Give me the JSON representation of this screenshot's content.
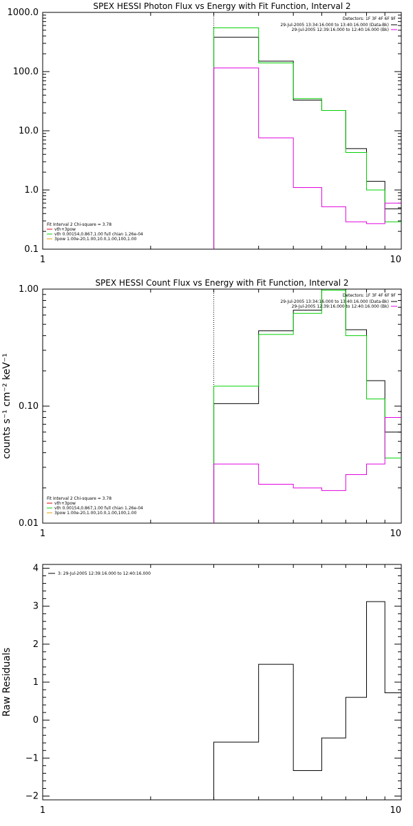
{
  "chart_data": [
    {
      "type": "line",
      "title": "SPEX HESSI Photon Flux vs Energy with Fit Function, Interval 2",
      "xscale": "log",
      "yscale": "log",
      "xlim": [
        1,
        10
      ],
      "ylim": [
        0.1,
        1000
      ],
      "xticklabels": [
        "1",
        "10"
      ],
      "yticks": [
        0.1,
        1,
        10,
        100,
        1000
      ],
      "yticklabels": [
        "0.1",
        "1.0",
        "10.0",
        "100.0",
        "1000.0"
      ],
      "vline_x": 3,
      "bin_edges": [
        3,
        4,
        5,
        6,
        7,
        8,
        9,
        10
      ],
      "series": [
        {
          "color": "#000000",
          "values": [
            380,
            150,
            33,
            22,
            5.0,
            1.4,
            0.48
          ]
        },
        {
          "color": "#00d000",
          "values": [
            550,
            140,
            35,
            22,
            4.3,
            1.0,
            0.29
          ]
        },
        {
          "color": "#e000e0",
          "values": [
            115,
            7.6,
            1.1,
            0.52,
            0.29,
            0.27,
            0.6
          ]
        }
      ],
      "detectors": "Detectors: 1F 3F 4F 6F 9F",
      "data_legend": [
        {
          "text": "29-Jul-2005 13:34:16.000 to 13:40:16.000 (Data-Bk)",
          "color": "#000000"
        },
        {
          "text": "29-Jul-2005 12:39:16.000 to 12:40:16.000 (Bk)",
          "color": "#e000e0"
        }
      ],
      "fit_legend": [
        {
          "text": "Fit Interval 2   Chi-square = 3.78",
          "color": null
        },
        {
          "text": "vth+3pow",
          "color": "#e00000"
        },
        {
          "text": "vth 0.00154,0.867,1.00  full chian 1.26e-04",
          "color": "#00d000"
        },
        {
          "text": "3pow 1.00e-20,1.00,10.0,1.00,100,1.00",
          "color": "#e0a000"
        }
      ]
    },
    {
      "type": "line",
      "title": "SPEX HESSI Count Flux vs Energy with Fit Function, Interval 2",
      "ylabel": "counts s⁻¹ cm⁻² keV⁻¹",
      "xscale": "log",
      "yscale": "log",
      "xlim": [
        1,
        10
      ],
      "ylim": [
        0.01,
        1.0
      ],
      "xticklabels": [
        "1",
        "10"
      ],
      "yticks": [
        0.01,
        0.1,
        1.0
      ],
      "yticklabels": [
        "0.01",
        "0.10",
        "1.00"
      ],
      "vline_x": 3,
      "bin_edges": [
        3,
        4,
        5,
        6,
        7,
        8,
        9,
        10
      ],
      "series": [
        {
          "color": "#000000",
          "values": [
            0.105,
            0.44,
            0.66,
            0.98,
            0.45,
            0.165,
            0.06
          ]
        },
        {
          "color": "#00d000",
          "values": [
            0.148,
            0.41,
            0.62,
            0.98,
            0.4,
            0.115,
            0.036
          ]
        },
        {
          "color": "#e000e0",
          "values": [
            0.032,
            0.0215,
            0.02,
            0.019,
            0.026,
            0.032,
            0.08
          ]
        }
      ],
      "detectors": "Detectors: 1F 3F 4F 6F 9F",
      "data_legend": [
        {
          "text": "29-Jul-2005 13:34:16.000 to 13:40:16.000 (Data-Bk)",
          "color": "#000000"
        },
        {
          "text": "29-Jul-2005 12:39:16.000 to 12:40:16.000 (Bk)",
          "color": "#e000e0"
        }
      ],
      "fit_legend": [
        {
          "text": "Fit Interval 2   Chi-square = 3.78",
          "color": null
        },
        {
          "text": "vth+3pow",
          "color": "#e00000"
        },
        {
          "text": "vth 0.00154,0.867,1.00  full chian 1.26e-04",
          "color": "#00d000"
        },
        {
          "text": "3pow 1.00e-20,1.00,10.0,1.00,100,1.00",
          "color": "#e0a000"
        }
      ]
    },
    {
      "type": "line",
      "ylabel": "Raw Residuals",
      "xscale": "log",
      "yscale": "linear",
      "xlim": [
        1,
        10
      ],
      "ylim": [
        -2.1,
        4.1
      ],
      "xticklabels": [
        "1",
        "10"
      ],
      "yticks": [
        -2,
        -1,
        0,
        1,
        2,
        3,
        4
      ],
      "yticklabels": [
        "−2",
        "−1",
        "0",
        "1",
        "2",
        "3",
        "4"
      ],
      "bin_edges": [
        3,
        4,
        5,
        6,
        7,
        8,
        9,
        10
      ],
      "series": [
        {
          "color": "#000000",
          "values": [
            -0.58,
            1.47,
            -1.33,
            -0.47,
            0.6,
            3.12,
            0.72
          ]
        }
      ],
      "residual_legend": "3: 29-Jul-2005 12:39:16.000 to 12:40:16.000"
    }
  ]
}
